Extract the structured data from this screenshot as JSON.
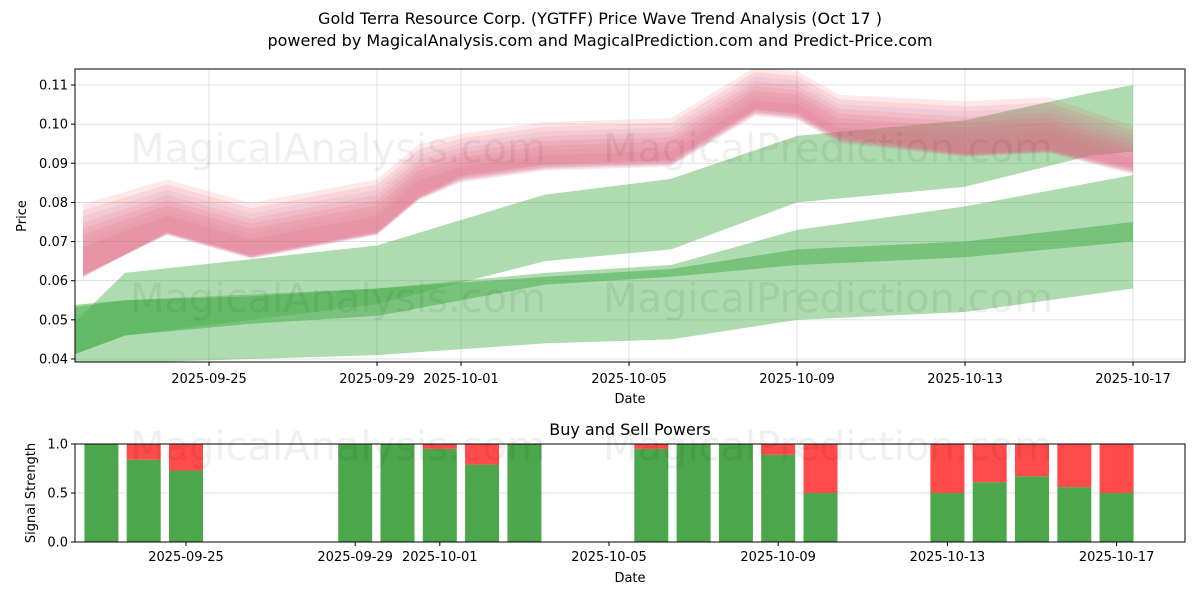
{
  "title": "Gold Terra Resource Corp. (YGTFF) Price Wave Trend Analysis (Oct 17 )",
  "subtitle": "powered by MagicalAnalysis.com and MagicalPrediction.com and Predict-Price.com",
  "watermarks": [
    "MagicalAnalysis.com",
    "MagicalPrediction.com"
  ],
  "colors": {
    "price_band": "#ef4b5a",
    "price_band_alt": "#9aa8f0",
    "forecast_band": "#4caf50",
    "buy": "#4ca64c",
    "sell": "#ff4b4b",
    "grid": "#d9d9d9"
  },
  "chart_data": [
    {
      "type": "area",
      "title": "",
      "xlabel": "Date",
      "ylabel": "Price",
      "ylim": [
        0.039,
        0.114
      ],
      "xlim": [
        "2025-09-21",
        "2025-10-18"
      ],
      "grid": true,
      "yticks": [
        "0.04",
        "0.05",
        "0.06",
        "0.07",
        "0.08",
        "0.09",
        "0.10",
        "0.11"
      ],
      "xticks": [
        "2025-09-25",
        "2025-09-29",
        "2025-10-01",
        "2025-10-05",
        "2025-10-09",
        "2025-10-13",
        "2025-10-17"
      ],
      "price_wave": {
        "name": "Price wave bands",
        "x": [
          "2025-09-22",
          "2025-09-24",
          "2025-09-26",
          "2025-09-29",
          "2025-09-30",
          "2025-10-01",
          "2025-10-03",
          "2025-10-06",
          "2025-10-08",
          "2025-10-09",
          "2025-10-10",
          "2025-10-13",
          "2025-10-15",
          "2025-10-17"
        ],
        "center": [
          0.068,
          0.077,
          0.071,
          0.077,
          0.086,
          0.09,
          0.093,
          0.094,
          0.107,
          0.106,
          0.1,
          0.097,
          0.098,
          0.092
        ],
        "spread": [
          0.007,
          0.005,
          0.005,
          0.005,
          0.005,
          0.004,
          0.004,
          0.004,
          0.004,
          0.004,
          0.004,
          0.005,
          0.005,
          0.004
        ]
      },
      "forecast_bands": [
        {
          "name": "Upper forecast band",
          "x": [
            "2025-09-21",
            "2025-09-23",
            "2025-09-29",
            "2025-10-03",
            "2025-10-06",
            "2025-10-09",
            "2025-10-13",
            "2025-10-16",
            "2025-10-17"
          ],
          "upper": [
            0.041,
            0.062,
            0.069,
            0.082,
            0.086,
            0.097,
            0.101,
            0.108,
            0.11
          ],
          "lower": [
            0.038,
            0.046,
            0.054,
            0.065,
            0.068,
            0.08,
            0.084,
            0.092,
            0.093
          ]
        },
        {
          "name": "Middle forecast band",
          "x": [
            "2025-09-21",
            "2025-09-23",
            "2025-09-29",
            "2025-10-03",
            "2025-10-06",
            "2025-10-09",
            "2025-10-13",
            "2025-10-17"
          ],
          "upper": [
            0.052,
            0.055,
            0.058,
            0.062,
            0.064,
            0.073,
            0.079,
            0.087
          ],
          "lower": [
            0.038,
            0.039,
            0.041,
            0.044,
            0.045,
            0.05,
            0.052,
            0.058
          ]
        },
        {
          "name": "Lower forecast band",
          "x": [
            "2025-09-21",
            "2025-09-23",
            "2025-09-26",
            "2025-09-29",
            "2025-10-03",
            "2025-10-06",
            "2025-10-09",
            "2025-10-13",
            "2025-10-17"
          ],
          "upper": [
            0.053,
            0.055,
            0.056,
            0.058,
            0.061,
            0.063,
            0.068,
            0.07,
            0.075
          ],
          "lower": [
            0.038,
            0.046,
            0.049,
            0.051,
            0.059,
            0.061,
            0.064,
            0.066,
            0.07
          ]
        }
      ]
    },
    {
      "type": "bar",
      "title": "Buy and Sell Powers",
      "xlabel": "Date",
      "ylabel": "Signal Strength",
      "ylim": [
        0,
        1
      ],
      "grid": true,
      "yticks": [
        "0.0",
        "0.5",
        "1.0"
      ],
      "xticks": [
        "2025-09-25",
        "2025-09-29",
        "2025-10-01",
        "2025-10-05",
        "2025-10-09",
        "2025-10-13",
        "2025-10-17"
      ],
      "categories": [
        "2025-09-23",
        "2025-09-24",
        "2025-09-25",
        "2025-09-29",
        "2025-09-30",
        "2025-10-01",
        "2025-10-02",
        "2025-10-03",
        "2025-10-06",
        "2025-10-07",
        "2025-10-08",
        "2025-10-09",
        "2025-10-10",
        "2025-10-13",
        "2025-10-14",
        "2025-10-15",
        "2025-10-16",
        "2025-10-17"
      ],
      "series": [
        {
          "name": "Buy",
          "values": [
            1.0,
            0.84,
            0.73,
            1.0,
            1.0,
            0.95,
            0.79,
            1.0,
            0.95,
            1.0,
            1.0,
            0.89,
            0.5,
            0.5,
            0.61,
            0.67,
            0.56,
            0.5
          ]
        },
        {
          "name": "Sell",
          "values": [
            0.0,
            0.16,
            0.27,
            0.0,
            0.0,
            0.05,
            0.21,
            0.0,
            0.05,
            0.0,
            0.0,
            0.11,
            0.5,
            0.5,
            0.39,
            0.33,
            0.44,
            0.5
          ]
        }
      ]
    }
  ]
}
